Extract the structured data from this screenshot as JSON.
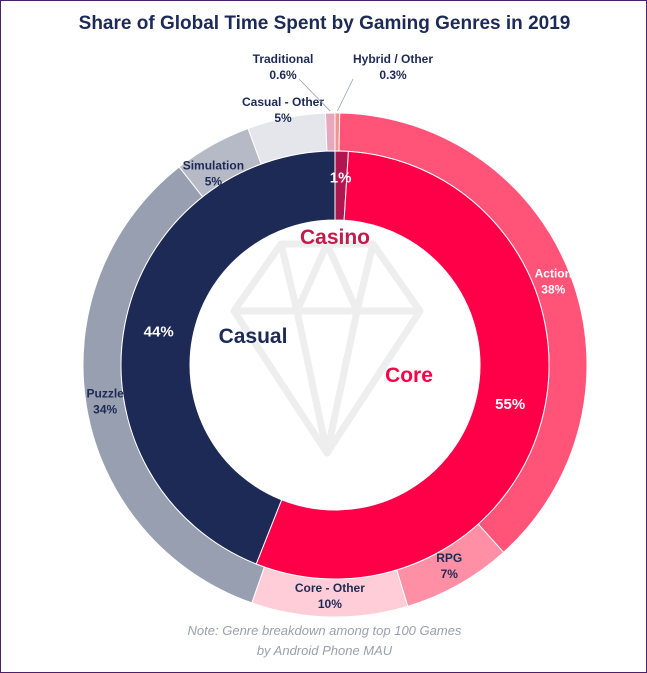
{
  "chart_data": {
    "type": "pie",
    "title": "Share of Global Time Spent by Gaming Genres in 2019",
    "inner_ring": [
      {
        "label": "Casino",
        "value": 1,
        "value_label": "1%",
        "color": "#b0174f"
      },
      {
        "label": "Core",
        "value": 55,
        "value_label": "55%",
        "color": "#ff0048"
      },
      {
        "label": "Casual",
        "value": 44,
        "value_label": "44%",
        "color": "#1d2a55"
      }
    ],
    "outer_ring": [
      {
        "name": "Hybrid / Other",
        "value": 0.3,
        "value_label": "0.3%",
        "color": "#f2958e"
      },
      {
        "name": "Action",
        "value": 38,
        "value_label": "38%",
        "color": "#ff5478"
      },
      {
        "name": "RPG",
        "value": 7,
        "value_label": "7%",
        "color": "#ff8fa5"
      },
      {
        "name": "Core - Other",
        "value": 10,
        "value_label": "10%",
        "color": "#ffcdd7"
      },
      {
        "name": "Puzzle",
        "value": 34,
        "value_label": "34%",
        "color": "#979fb0"
      },
      {
        "name": "Simulation",
        "value": 5,
        "value_label": "5%",
        "color": "#b5bac6"
      },
      {
        "name": "Casual - Other",
        "value": 5,
        "value_label": "5%",
        "color": "#e4e6eb"
      },
      {
        "name": "Traditional",
        "value": 0.6,
        "value_label": "0.6%",
        "color": "#e7a8bf"
      }
    ],
    "note": [
      "Note: Genre breakdown among top 100 Games",
      "by Android Phone MAU"
    ]
  }
}
